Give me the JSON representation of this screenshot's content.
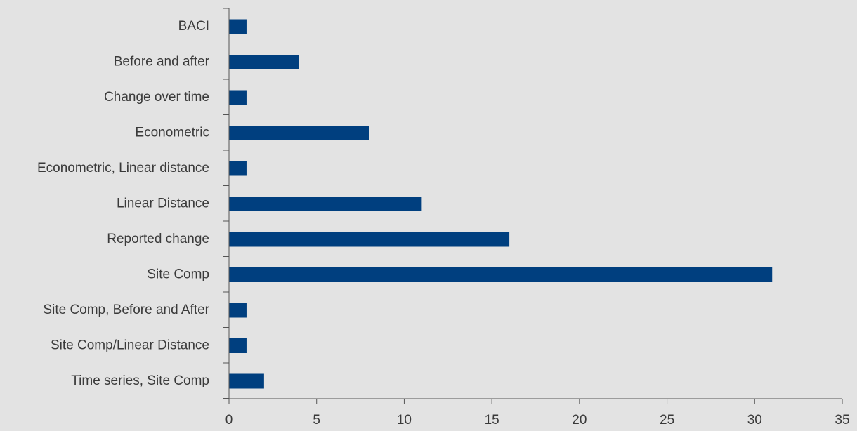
{
  "chart_data": {
    "type": "bar",
    "orientation": "horizontal",
    "categories": [
      "BACI",
      "Before and after",
      "Change over time",
      "Econometric",
      "Econometric, Linear distance",
      "Linear Distance",
      "Reported change",
      "Site Comp",
      "Site Comp, Before and After",
      "Site Comp/Linear Distance",
      "Time series, Site Comp"
    ],
    "values": [
      1,
      4,
      1,
      8,
      1,
      11,
      16,
      31,
      1,
      1,
      2
    ],
    "xlim": [
      0,
      35
    ],
    "xticks": [
      "0",
      "5",
      "10",
      "15",
      "20",
      "25",
      "30",
      "35"
    ],
    "grid": false,
    "legend": "none",
    "colors": {
      "bar": "#003f7f",
      "background": "#e3e3e3",
      "axis": "#555555",
      "text": "#3a3a3a"
    }
  }
}
